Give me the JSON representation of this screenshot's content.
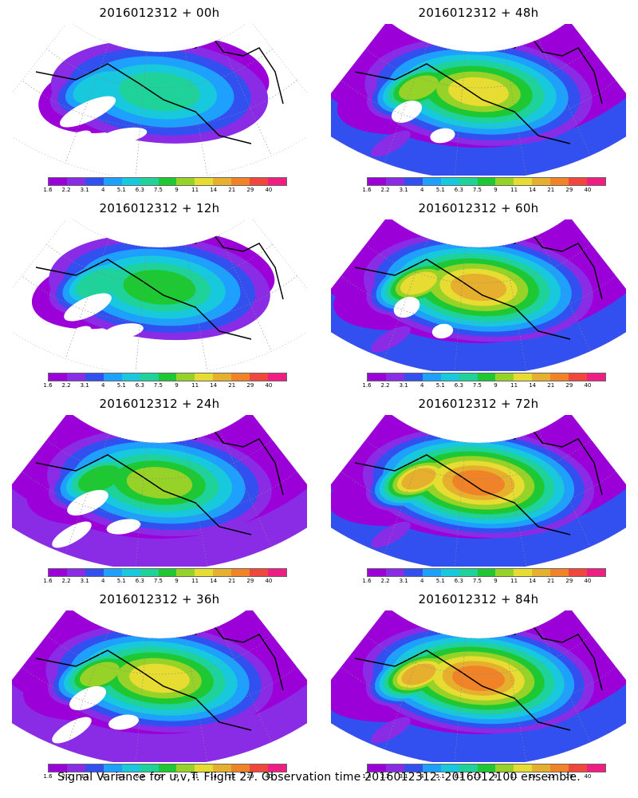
{
  "caption": "Signal Variance for u,v,T. Flight 27. Observation time 2016012312. 2016012100 ensemble.",
  "colorbar": {
    "ticks": [
      "1.6",
      "2.2",
      "3.1",
      "4",
      "5.1",
      "6.3",
      "7.5",
      "9",
      "11",
      "14",
      "21",
      "29",
      "40"
    ],
    "colors": [
      "#9b00d8",
      "#8a2ce6",
      "#3250f0",
      "#1ea0ff",
      "#18c8dc",
      "#1ed29a",
      "#1ec832",
      "#96d228",
      "#e6dc32",
      "#e6af2d",
      "#f08228",
      "#f0463c",
      "#f01e82"
    ]
  },
  "panels": [
    {
      "title": "2016012312 + 00h",
      "intensity": 0.15
    },
    {
      "title": "2016012312 + 48h",
      "intensity": 0.55
    },
    {
      "title": "2016012312 + 12h",
      "intensity": 0.28
    },
    {
      "title": "2016012312 + 60h",
      "intensity": 0.62
    },
    {
      "title": "2016012312 + 24h",
      "intensity": 0.38
    },
    {
      "title": "2016012312 + 72h",
      "intensity": 0.72
    },
    {
      "title": "2016012312 + 36h",
      "intensity": 0.45
    },
    {
      "title": "2016012312 + 84h",
      "intensity": 0.8
    }
  ]
}
